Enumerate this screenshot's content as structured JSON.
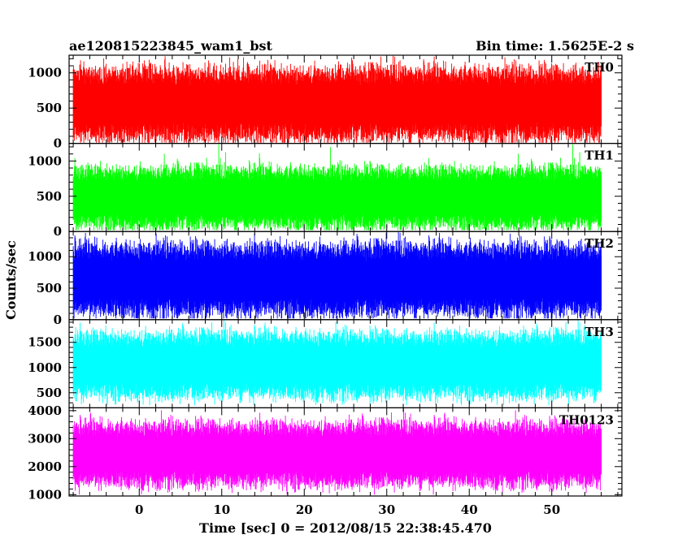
{
  "chart_data": {
    "type": "line",
    "title_left": "ae120815223845_wam1_bst",
    "title_right": "Bin time: 1.5625E-2 s",
    "xlabel": "Time [sec] 0 = 2012/08/15 22:38:45.470",
    "ylabel": "Counts/sec",
    "xlim": [
      -8.5,
      58.5
    ],
    "x_ticks": [
      0,
      10,
      20,
      30,
      40,
      50
    ],
    "x_tick_labels": [
      "0",
      "10",
      "20",
      "30",
      "40",
      "50"
    ],
    "data_x_range": [
      -8.0,
      56.0
    ],
    "bin_time": 0.015625,
    "grid": false,
    "panels": [
      {
        "name": "TH0",
        "color": "#ff0000",
        "ylim": [
          0,
          1250
        ],
        "y_ticks": [
          0,
          500,
          1000
        ],
        "y_tick_labels": [
          "0",
          "500",
          "1000"
        ],
        "typical_range": [
          100,
          1050
        ],
        "mean": 560,
        "peak_max": 1250,
        "trough_min": 10
      },
      {
        "name": "TH1",
        "color": "#00ff00",
        "ylim": [
          0,
          1250
        ],
        "y_ticks": [
          0,
          500,
          1000
        ],
        "y_tick_labels": [
          "0",
          "500",
          "1000"
        ],
        "typical_range": [
          100,
          900
        ],
        "mean": 480,
        "peak_max": 1250,
        "trough_min": 20
      },
      {
        "name": "TH2",
        "color": "#0000ff",
        "ylim": [
          0,
          1400
        ],
        "y_ticks": [
          0,
          500,
          1000
        ],
        "y_tick_labels": [
          "0",
          "500",
          "1000"
        ],
        "typical_range": [
          100,
          1150
        ],
        "mean": 640,
        "peak_max": 1400,
        "trough_min": 20
      },
      {
        "name": "TH3",
        "color": "#00ffff",
        "ylim": [
          200,
          1950
        ],
        "y_ticks": [
          500,
          1000,
          1500
        ],
        "y_tick_labels": [
          "500",
          "1000",
          "1500"
        ],
        "typical_range": [
          450,
          1650
        ],
        "mean": 1050,
        "peak_max": 1950,
        "trough_min": 250
      },
      {
        "name": "TH0123",
        "color": "#ff00ff",
        "ylim": [
          950,
          4100
        ],
        "y_ticks": [
          1000,
          2000,
          3000,
          4000
        ],
        "y_tick_labels": [
          "1000",
          "2000",
          "3000",
          "4000"
        ],
        "typical_range": [
          1400,
          3500
        ],
        "mean": 2450,
        "peak_max": 4100,
        "trough_min": 1000
      }
    ]
  }
}
